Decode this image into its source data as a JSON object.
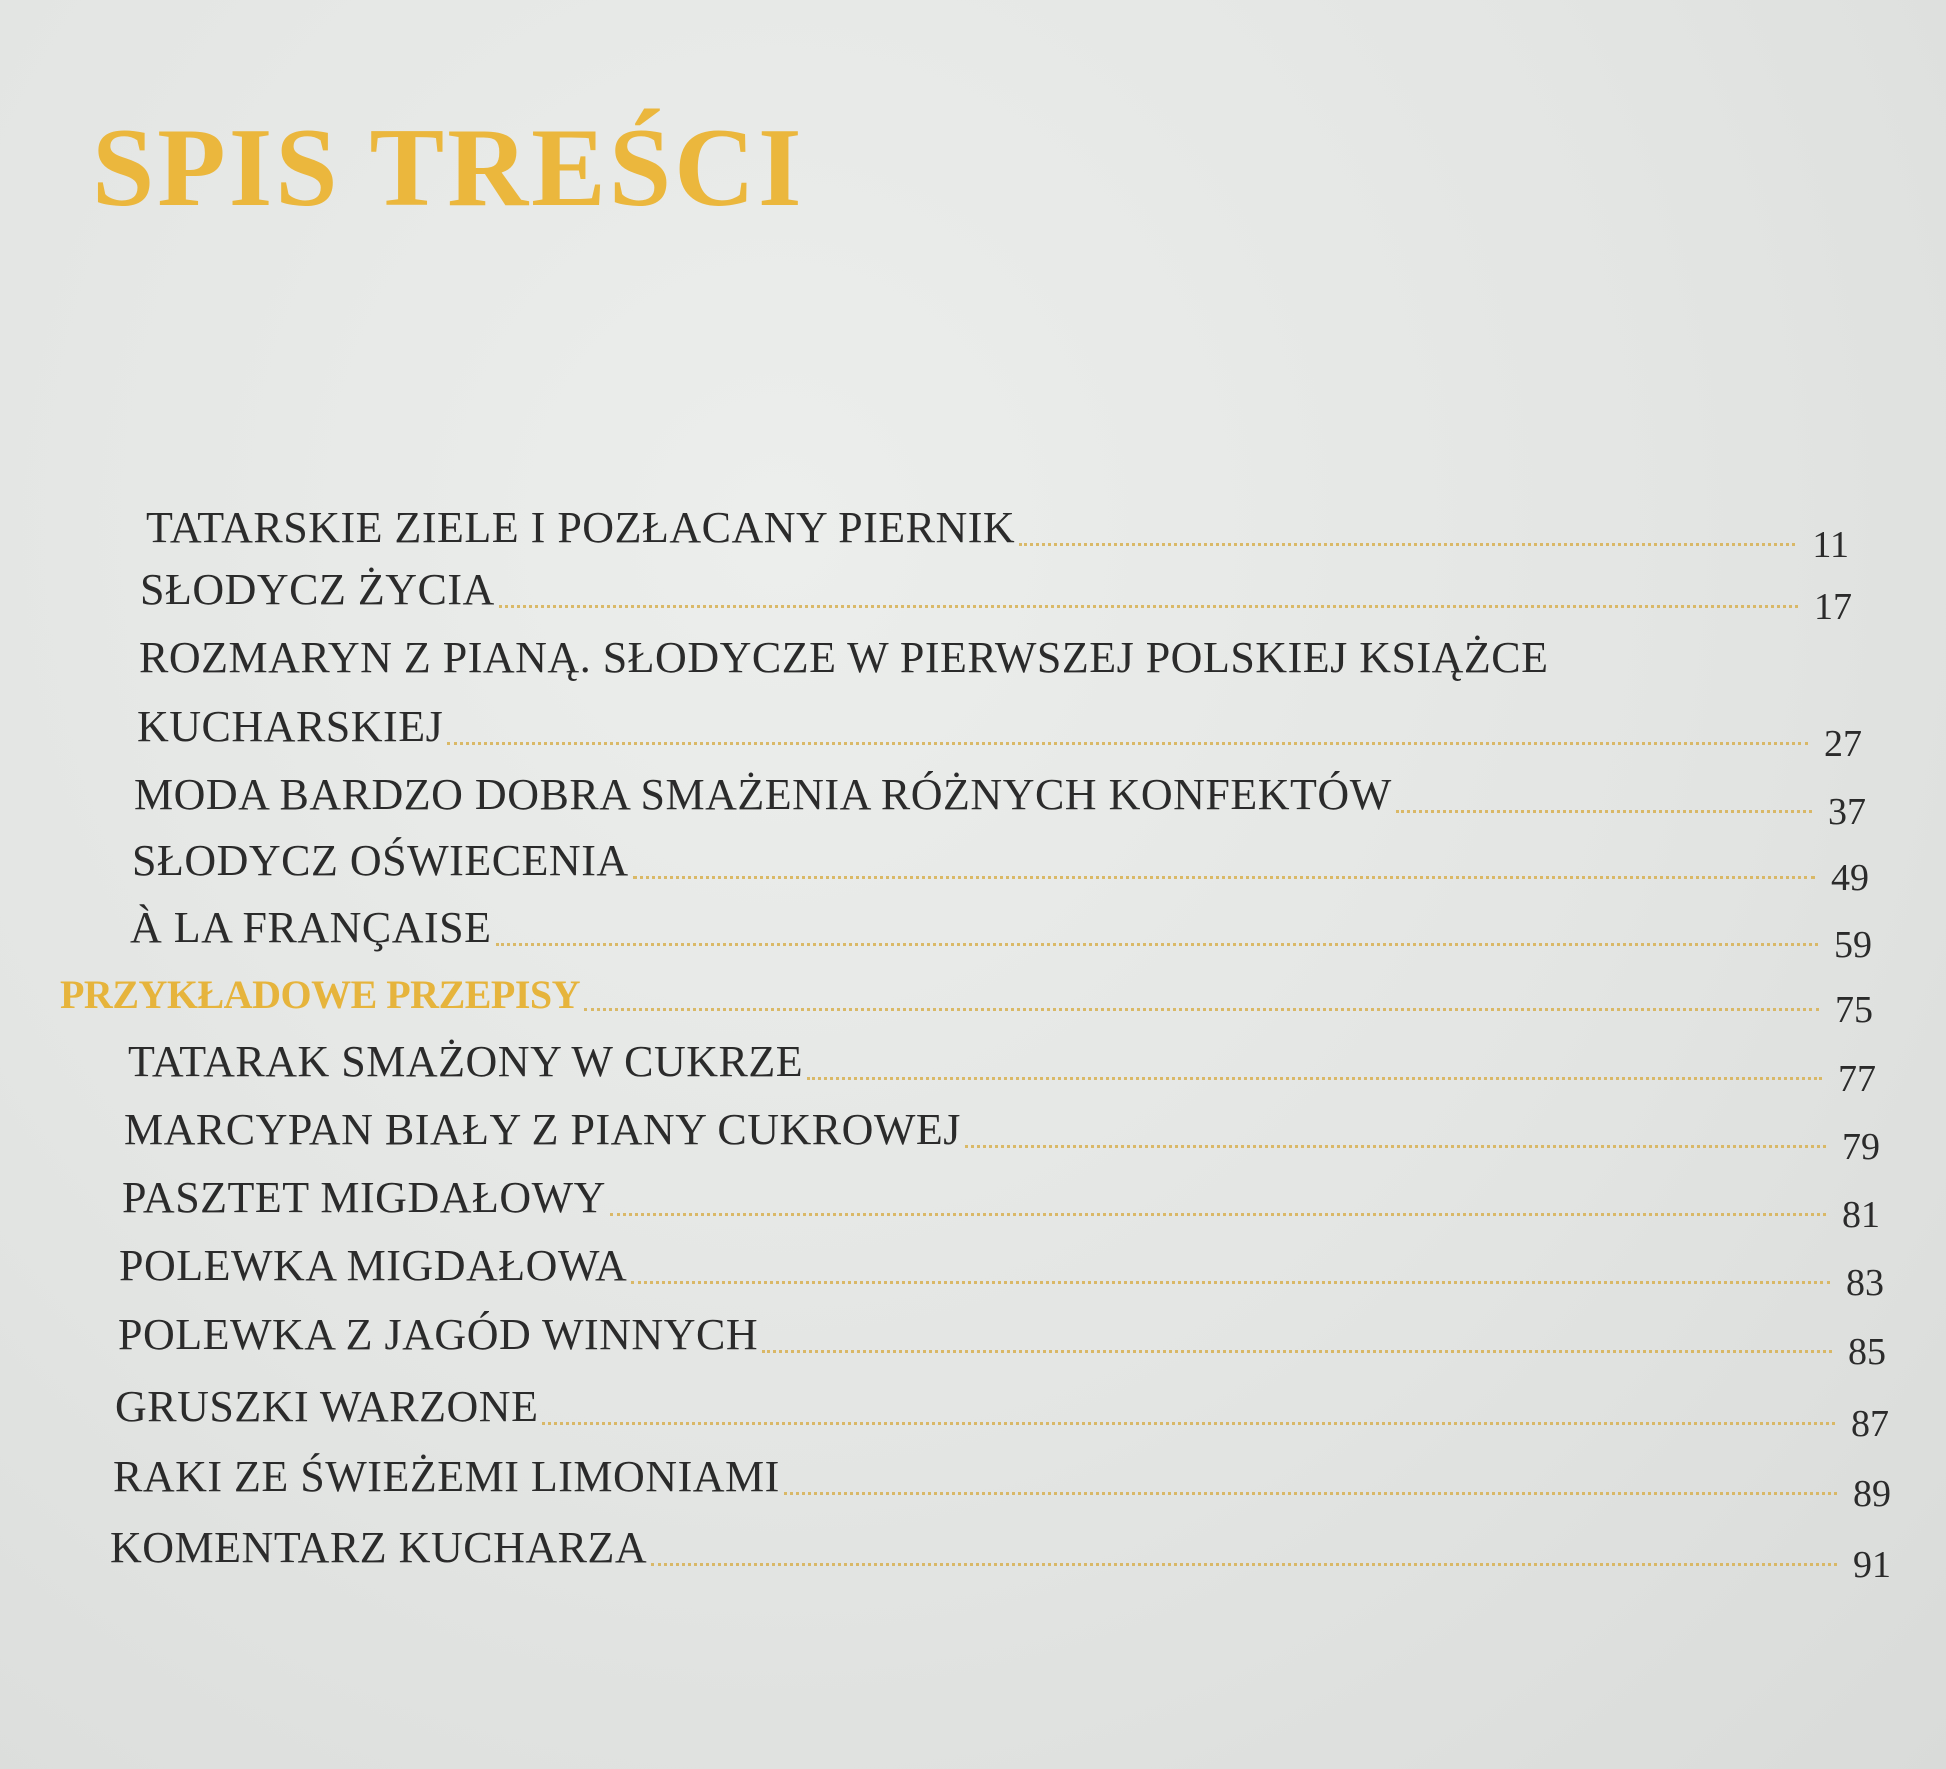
{
  "title": "SPIS TREŚCI",
  "accent_color": "#ebb73d",
  "entries": [
    {
      "lines": [
        "TATARSKIE ZIELE I POZŁACANY PIERNIK"
      ],
      "page": "11"
    },
    {
      "lines": [
        "SŁODYCZ ŻYCIA"
      ],
      "page": "17"
    },
    {
      "lines": [
        "ROZMARYN Z PIANĄ. SŁODYCZE W PIERWSZEJ POLSKIEJ KSIĄŻCE",
        "KUCHARSKIEJ"
      ],
      "page": "27"
    },
    {
      "lines": [
        "MODA BARDZO DOBRA SMAŻENIA RÓŻNYCH KONFEKTÓW"
      ],
      "page": "37"
    },
    {
      "lines": [
        "SŁODYCZ OŚWIECENIA"
      ],
      "page": "49"
    },
    {
      "lines": [
        "À LA FRANÇAISE"
      ],
      "page": "59"
    },
    {
      "lines": [
        "PRZYKŁADOWE PRZEPISY"
      ],
      "page": "75",
      "heading": true
    },
    {
      "lines": [
        "TATARAK SMAŻONY W CUKRZE"
      ],
      "page": "77"
    },
    {
      "lines": [
        "MARCYPAN BIAŁY Z PIANY CUKROWEJ"
      ],
      "page": "79"
    },
    {
      "lines": [
        "PASZTET MIGDAŁOWY"
      ],
      "page": "81"
    },
    {
      "lines": [
        "POLEWKA MIGDAŁOWA"
      ],
      "page": "83"
    },
    {
      "lines": [
        "POLEWKA Z JAGÓD WINNYCH"
      ],
      "page": "85"
    },
    {
      "lines": [
        "GRUSZKI WARZONE"
      ],
      "page": "87"
    },
    {
      "lines": [
        "RAKI ZE ŚWIEŻEMI LIMONIAMI"
      ],
      "page": "89"
    },
    {
      "lines": [
        "KOMENTARZ KUCHARZA"
      ],
      "page": "91"
    }
  ]
}
